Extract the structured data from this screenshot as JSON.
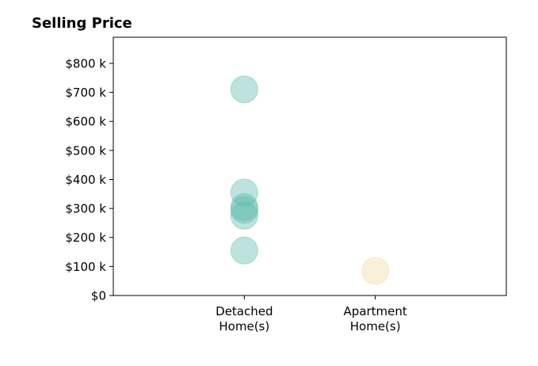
{
  "chart_data": {
    "type": "scatter",
    "title": "Selling Price",
    "xlabel": "",
    "ylabel": "",
    "categories": [
      [
        "Detached",
        "Home(s)"
      ],
      [
        "Apartment",
        "Home(s)"
      ]
    ],
    "ylim": [
      0,
      890000
    ],
    "yticks": [
      {
        "value": 0,
        "label": "$0"
      },
      {
        "value": 100000,
        "label": "$100 k"
      },
      {
        "value": 200000,
        "label": "$200 k"
      },
      {
        "value": 300000,
        "label": "$300 k"
      },
      {
        "value": 400000,
        "label": "$400 k"
      },
      {
        "value": 500000,
        "label": "$500 k"
      },
      {
        "value": 600000,
        "label": "$600 k"
      },
      {
        "value": 700000,
        "label": "$700 k"
      },
      {
        "value": 800000,
        "label": "$800 k"
      }
    ],
    "grid": false,
    "series": [
      {
        "category_index": 0,
        "color": "#5cb8ad",
        "values": [
          710000,
          355000,
          305000,
          295000,
          275000,
          155000
        ]
      },
      {
        "category_index": 1,
        "color": "#f2d89c",
        "values": [
          85000
        ]
      }
    ]
  }
}
